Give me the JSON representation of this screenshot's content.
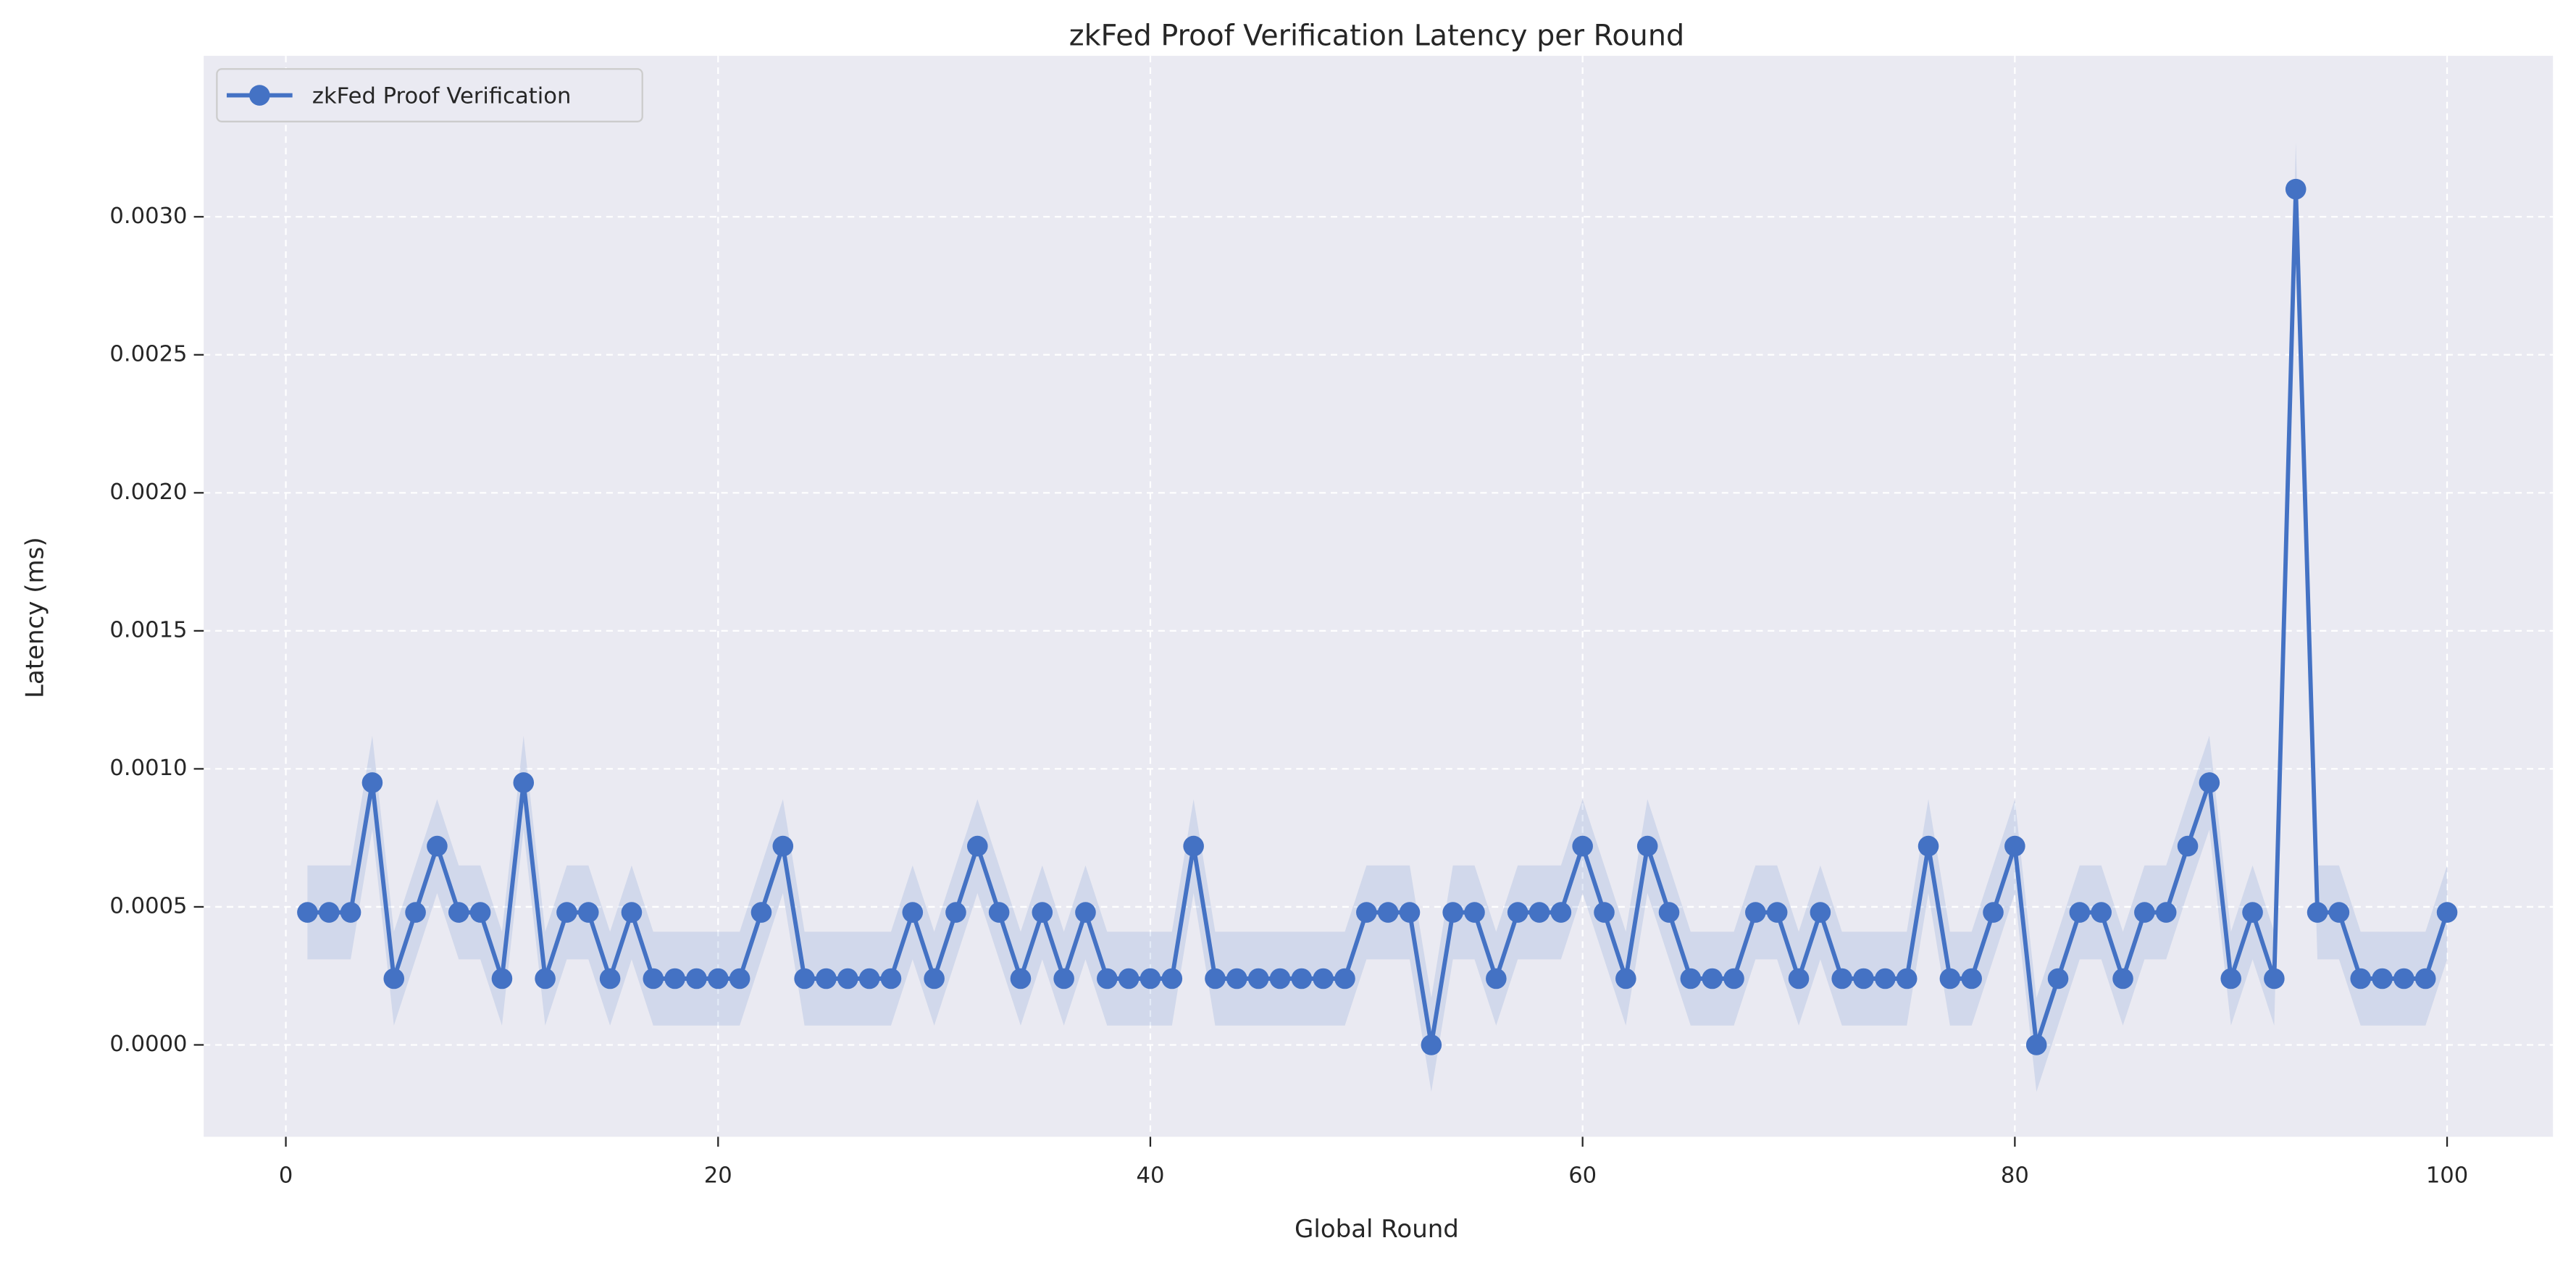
{
  "chart_data": {
    "type": "line",
    "title": "zkFed Proof Verification Latency per Round",
    "x_label": "Global Round",
    "y_label": "Latency (ms)",
    "x": [
      1,
      2,
      3,
      4,
      5,
      6,
      7,
      8,
      9,
      10,
      11,
      12,
      13,
      14,
      15,
      16,
      17,
      18,
      19,
      20,
      21,
      22,
      23,
      24,
      25,
      26,
      27,
      28,
      29,
      30,
      31,
      32,
      33,
      34,
      35,
      36,
      37,
      38,
      39,
      40,
      41,
      42,
      43,
      44,
      45,
      46,
      47,
      48,
      49,
      50,
      51,
      52,
      53,
      54,
      55,
      56,
      57,
      58,
      59,
      60,
      61,
      62,
      63,
      64,
      65,
      66,
      67,
      68,
      69,
      70,
      71,
      72,
      73,
      74,
      75,
      76,
      77,
      78,
      79,
      80,
      81,
      82,
      83,
      84,
      85,
      86,
      87,
      88,
      89,
      90,
      91,
      92,
      93,
      94,
      95,
      96,
      97,
      98,
      99,
      100
    ],
    "series": [
      {
        "name": "zkFed Proof Verification",
        "color": "#4472c4",
        "band": 0.00017,
        "values": [
          0.00048,
          0.00048,
          0.00048,
          0.00095,
          0.00024,
          0.00048,
          0.00072,
          0.00048,
          0.00048,
          0.00024,
          0.00095,
          0.00024,
          0.00048,
          0.00048,
          0.00024,
          0.00048,
          0.00024,
          0.00024,
          0.00024,
          0.00024,
          0.00024,
          0.00048,
          0.00072,
          0.00024,
          0.00024,
          0.00024,
          0.00024,
          0.00024,
          0.00048,
          0.00024,
          0.00048,
          0.00072,
          0.00048,
          0.00024,
          0.00048,
          0.00024,
          0.00048,
          0.00024,
          0.00024,
          0.00024,
          0.00024,
          0.00072,
          0.00024,
          0.00024,
          0.00024,
          0.00024,
          0.00024,
          0.00024,
          0.00024,
          0.00048,
          0.00048,
          0.00048,
          0,
          0.00048,
          0.00048,
          0.00024,
          0.00048,
          0.00048,
          0.00048,
          0.00072,
          0.00048,
          0.00024,
          0.00072,
          0.00048,
          0.00024,
          0.00024,
          0.00024,
          0.00048,
          0.00048,
          0.00024,
          0.00048,
          0.00024,
          0.00024,
          0.00024,
          0.00024,
          0.00072,
          0.00024,
          0.00024,
          0.00048,
          0.00072,
          0,
          0.00024,
          0.00048,
          0.00048,
          0.00024,
          0.00048,
          0.00048,
          0.00072,
          0.00095,
          0.00024,
          0.00048,
          0.00024,
          0.0031,
          0.00048,
          0.00048,
          0.00024,
          0.00024,
          0.00024,
          0.00024,
          0.00048
        ]
      }
    ],
    "xlim": [
      -3.8,
      104.9
    ],
    "xticks": [
      0,
      20,
      40,
      60,
      80,
      100
    ],
    "ylim": [
      -0.000333,
      0.003583
    ],
    "yticks": [
      {
        "value": 0,
        "label": "0.0000"
      },
      {
        "value": 0.0005,
        "label": "0.0005"
      },
      {
        "value": 0.001,
        "label": "0.0010"
      },
      {
        "value": 0.0015,
        "label": "0.0015"
      },
      {
        "value": 0.002,
        "label": "0.0020"
      },
      {
        "value": 0.0025,
        "label": "0.0025"
      },
      {
        "value": 0.003,
        "label": "0.0030"
      }
    ],
    "grid": true,
    "legend": "upper left"
  }
}
